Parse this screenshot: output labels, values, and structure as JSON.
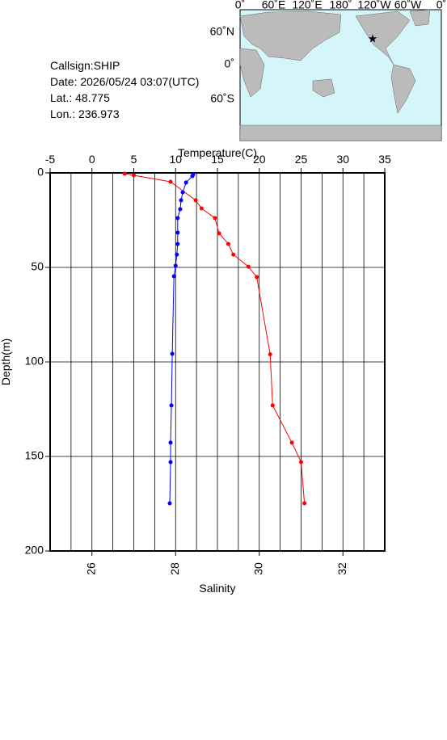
{
  "info": {
    "lines": [
      "Callsign:SHIP",
      "Date:  2026/05/24 03:07(UTC)",
      "Lat.:  48.775",
      "Lon.:  236.973"
    ]
  },
  "map": {
    "lon_labels": [
      "0˚",
      "60˚E",
      "120˚E",
      "180˚",
      "120˚W",
      "60˚W",
      "0˚"
    ],
    "lat_labels": [
      "60˚N",
      "0˚",
      "60˚S"
    ]
  },
  "chart_data": {
    "type": "profile",
    "xlabel": "Temperature(C)",
    "x2label": "Salinity",
    "ylabel": "Depth(m)",
    "xlim": [
      -5,
      35
    ],
    "xticks": [
      -5,
      0,
      5,
      10,
      15,
      20,
      25,
      30,
      35
    ],
    "x2lim": [
      25,
      33
    ],
    "x2ticks": [
      26,
      28,
      30,
      32
    ],
    "ylim": [
      0,
      200
    ],
    "yticks": [
      0,
      50,
      100,
      150,
      200
    ],
    "y_inverted": true,
    "xgrid": [
      -2.5,
      0,
      2.5,
      5,
      7.5,
      10,
      12.5,
      15,
      17.5,
      20,
      22.5,
      25,
      27.5,
      30,
      32.5
    ],
    "grid": true,
    "series": [
      {
        "color": "#ff0000",
        "axis": "x",
        "x": [
          3.9,
          5.0,
          9.4,
          12.4,
          13.1,
          14.7,
          15.2,
          16.3,
          16.9,
          18.7,
          19.7,
          21.3,
          21.6,
          23.9,
          25.0,
          25.4
        ],
        "y": [
          0.4,
          1.3,
          4.7,
          14.5,
          18.8,
          23.9,
          32,
          37.6,
          43.2,
          49.6,
          55.1,
          96,
          123,
          142.7,
          153,
          174.8
        ]
      },
      {
        "color": "#0000ff",
        "axis": "x2",
        "x": [
          28.42,
          28.4,
          28.25,
          28.17,
          28.13,
          28.11,
          28.05,
          28.05,
          28.05,
          28.03,
          28.0,
          27.96,
          27.92,
          27.9,
          27.88,
          27.88,
          27.86
        ],
        "y": [
          0.9,
          1.7,
          5.1,
          10.3,
          14.5,
          19.2,
          23.9,
          31.6,
          37.6,
          43.2,
          49.1,
          54.7,
          95.7,
          123,
          142.7,
          153,
          174.8
        ]
      }
    ]
  }
}
